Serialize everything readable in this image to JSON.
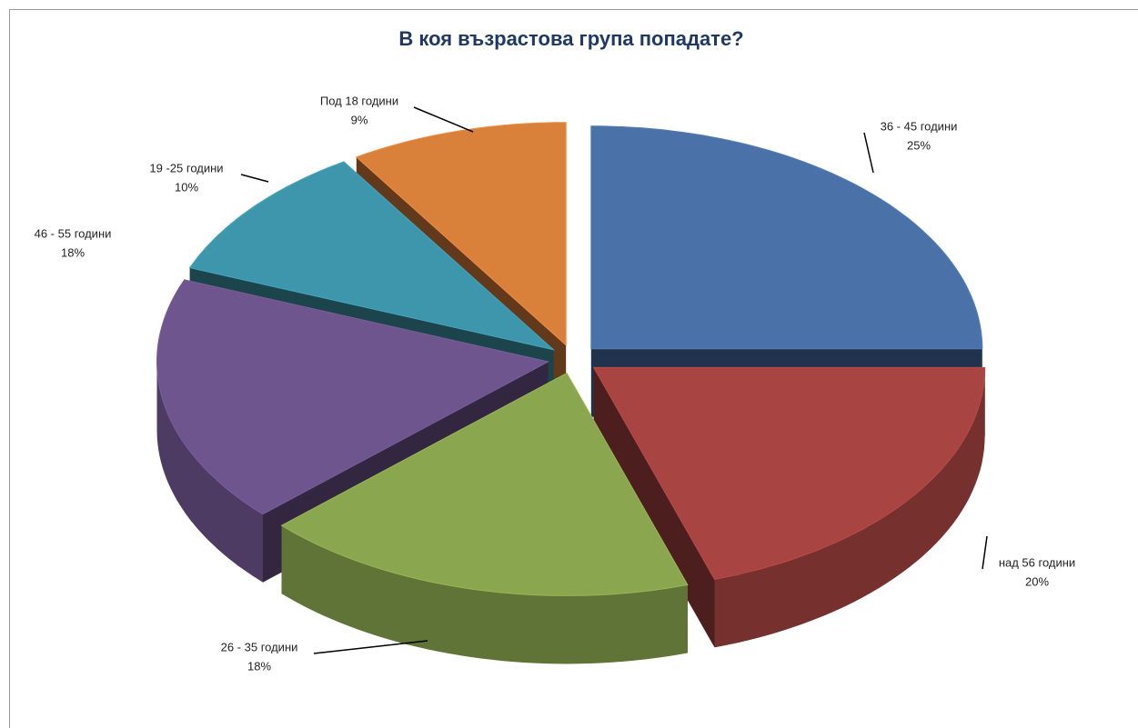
{
  "chart_data": {
    "type": "pie3d",
    "title": "В коя възрастова група попадате?",
    "categories": [
      "36 - 45 години",
      "над 56 години",
      "26 - 35 години",
      "46 - 55 години",
      "19 -25 години",
      "Под 18 години"
    ],
    "values": [
      25,
      20,
      18,
      18,
      10,
      9
    ],
    "value_labels": [
      "25%",
      "20%",
      "18%",
      "18%",
      "10%",
      "9%"
    ],
    "colors": [
      "#4a72a8",
      "#a84442",
      "#8aa64e",
      "#6e558e",
      "#3e96ac",
      "#d9803b"
    ]
  }
}
